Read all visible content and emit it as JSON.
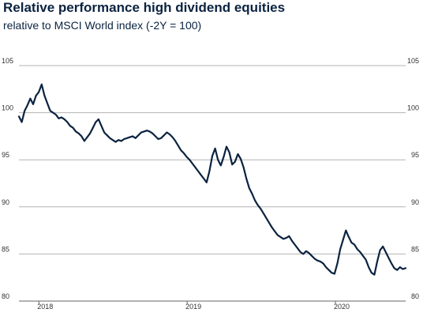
{
  "title": "Relative performance high dividend equities",
  "subtitle": "relative to MSCI World index (-2Y = 100)",
  "chart_data": {
    "type": "line",
    "title": "Relative performance high dividend equities",
    "subtitle": "relative to MSCI World index (-2Y = 100)",
    "xlabel": "",
    "ylabel": "",
    "ylim": [
      80,
      105
    ],
    "yticks": [
      "80",
      "85",
      "90",
      "95",
      "100",
      "105"
    ],
    "xticks": [
      "2018",
      "2019",
      "2020"
    ],
    "grid": true,
    "line_color": "#0b2340",
    "grid_color": "#b3b3b3",
    "x_period": "2017-11 to 2020-06 (weekly)",
    "series": [
      {
        "name": "",
        "x": [
          "2017-11-13",
          "2017-11-20",
          "2017-11-27",
          "2017-12-04",
          "2017-12-11",
          "2017-12-18",
          "2017-12-25",
          "2018-01-01",
          "2018-01-08",
          "2018-01-15",
          "2018-01-22",
          "2018-01-29",
          "2018-02-05",
          "2018-02-12",
          "2018-02-19",
          "2018-02-26",
          "2018-03-05",
          "2018-03-12",
          "2018-03-19",
          "2018-03-26",
          "2018-04-02",
          "2018-04-09",
          "2018-04-16",
          "2018-04-23",
          "2018-04-30",
          "2018-05-07",
          "2018-05-14",
          "2018-05-21",
          "2018-05-28",
          "2018-06-04",
          "2018-06-11",
          "2018-06-18",
          "2018-06-25",
          "2018-07-02",
          "2018-07-09",
          "2018-07-16",
          "2018-07-23",
          "2018-07-30",
          "2018-08-06",
          "2018-08-13",
          "2018-08-20",
          "2018-08-27",
          "2018-09-03",
          "2018-09-10",
          "2018-09-17",
          "2018-09-24",
          "2018-10-01",
          "2018-10-08",
          "2018-10-15",
          "2018-10-22",
          "2018-10-29",
          "2018-11-05",
          "2018-11-12",
          "2018-11-19",
          "2018-11-26",
          "2018-12-03",
          "2018-12-10",
          "2018-12-17",
          "2018-12-24",
          "2018-12-31",
          "2019-01-07",
          "2019-01-14",
          "2019-01-21",
          "2019-01-28",
          "2019-02-04",
          "2019-02-11",
          "2019-02-18",
          "2019-02-25",
          "2019-03-04",
          "2019-03-11",
          "2019-03-18",
          "2019-03-25",
          "2019-04-01",
          "2019-04-08",
          "2019-04-15",
          "2019-04-22",
          "2019-04-29",
          "2019-05-06",
          "2019-05-13",
          "2019-05-20",
          "2019-05-27",
          "2019-06-03",
          "2019-06-10",
          "2019-06-17",
          "2019-06-24",
          "2019-07-01",
          "2019-07-08",
          "2019-07-15",
          "2019-07-22",
          "2019-07-29",
          "2019-08-05",
          "2019-08-12",
          "2019-08-19",
          "2019-08-26",
          "2019-09-02",
          "2019-09-09",
          "2019-09-16",
          "2019-09-23",
          "2019-09-30",
          "2019-10-07",
          "2019-10-14",
          "2019-10-21",
          "2019-10-28",
          "2019-11-04",
          "2019-11-11",
          "2019-11-18",
          "2019-11-25",
          "2019-12-02",
          "2019-12-09",
          "2019-12-16",
          "2019-12-23",
          "2019-12-30",
          "2020-01-06",
          "2020-01-13",
          "2020-01-20",
          "2020-01-27",
          "2020-02-03",
          "2020-02-10",
          "2020-02-17",
          "2020-02-24",
          "2020-03-02",
          "2020-03-09",
          "2020-03-16",
          "2020-03-23",
          "2020-03-30",
          "2020-04-06",
          "2020-04-13",
          "2020-04-20",
          "2020-04-27",
          "2020-05-04",
          "2020-05-11",
          "2020-05-18",
          "2020-05-25",
          "2020-06-01",
          "2020-06-08",
          "2020-06-15",
          "2020-06-22"
        ],
        "values": [
          99.6,
          99.0,
          100.2,
          100.8,
          101.5,
          100.9,
          101.8,
          102.2,
          103.0,
          101.8,
          101.0,
          100.2,
          100.0,
          99.8,
          99.4,
          99.5,
          99.3,
          99.0,
          98.6,
          98.4,
          98.0,
          97.8,
          97.5,
          97.0,
          97.4,
          97.8,
          98.4,
          99.0,
          99.3,
          98.6,
          97.9,
          97.6,
          97.3,
          97.1,
          96.9,
          97.1,
          97.0,
          97.2,
          97.3,
          97.4,
          97.5,
          97.3,
          97.6,
          97.9,
          98.0,
          98.1,
          98.0,
          97.8,
          97.5,
          97.2,
          97.3,
          97.6,
          97.9,
          97.7,
          97.4,
          97.0,
          96.5,
          96.0,
          95.7,
          95.3,
          95.0,
          94.6,
          94.2,
          93.8,
          93.4,
          93.0,
          92.6,
          93.8,
          95.4,
          96.2,
          95.0,
          94.4,
          95.3,
          96.4,
          95.8,
          94.5,
          94.8,
          95.6,
          95.1,
          94.2,
          93.0,
          92.0,
          91.4,
          90.7,
          90.2,
          89.8,
          89.3,
          88.8,
          88.3,
          87.8,
          87.4,
          87.0,
          86.8,
          86.6,
          86.7,
          86.9,
          86.4,
          86.0,
          85.6,
          85.2,
          85.0,
          85.3,
          85.1,
          84.8,
          84.5,
          84.3,
          84.2,
          84.0,
          83.6,
          83.3,
          83.0,
          82.9,
          84.0,
          85.5,
          86.5,
          87.5,
          86.8,
          86.2,
          86.0,
          85.5,
          85.2,
          84.8,
          84.4,
          83.6,
          83.0,
          82.8,
          84.2,
          85.4,
          85.8,
          85.2,
          84.6,
          84.0,
          83.5,
          83.3,
          83.6,
          83.4,
          83.5
        ]
      }
    ]
  }
}
